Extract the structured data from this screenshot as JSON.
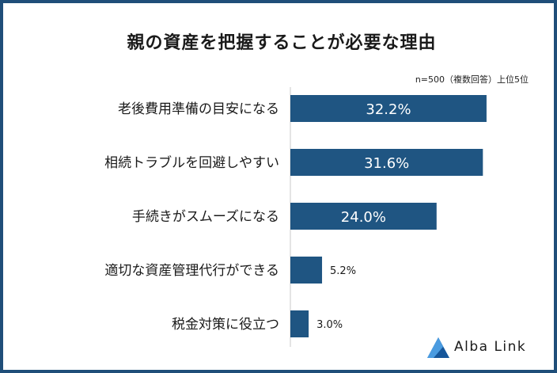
{
  "chart_data": {
    "type": "bar",
    "orientation": "horizontal",
    "title": "親の資産を把握することが必要な理由",
    "note": "n=500（複数回答）上位5位",
    "categories": [
      "老後費用準備の目安になる",
      "相続トラブルを回避しやすい",
      "手続きがスムーズになる",
      "適切な資産管理代行ができる",
      "税金対策に役立つ"
    ],
    "values": [
      32.2,
      31.6,
      24.0,
      5.2,
      3.0
    ],
    "value_labels": [
      "32.2%",
      "31.6%",
      "24.0%",
      "5.2%",
      "3.0%"
    ],
    "bar_color": "#1f5582",
    "xlim": [
      0,
      36
    ],
    "legend": "none",
    "grid": false
  },
  "brand": {
    "name": "Alba Link",
    "color": "#1f6fb8"
  }
}
